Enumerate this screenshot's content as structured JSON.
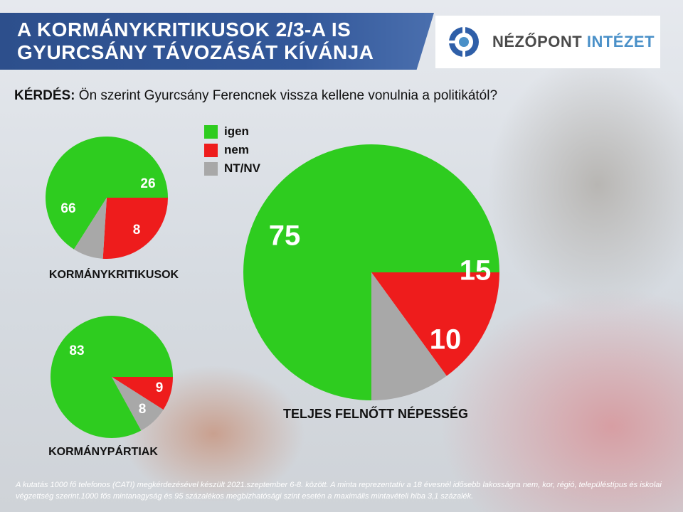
{
  "header": {
    "title_line1": "A KORMÁNYKRITIKUSOK 2/3-A IS",
    "title_line2": "GYURCSÁNY TÁVOZÁSÁT KÍVÁNJA",
    "logo_part1": "NÉZŐPONT",
    "logo_part2": "INTÉZET",
    "logo_icon": "target-circle-icon"
  },
  "question": {
    "label": "KÉRDÉS:",
    "text": "Ön szerint Gyurcsány Ferencnek vissza kellene vonulnia a politikától?"
  },
  "legend": [
    {
      "label": "igen",
      "color": "#2ecc1f"
    },
    {
      "label": "nem",
      "color": "#ee1c1c"
    },
    {
      "label": "NT/NV",
      "color": "#a8a8a8"
    }
  ],
  "chart_data": [
    {
      "type": "pie",
      "title": "KORMÁNYKRITIKUSOK",
      "categories": [
        "igen",
        "nem",
        "NT/NV"
      ],
      "values": [
        66,
        26,
        8
      ],
      "labels": [
        "66",
        "26",
        "8"
      ]
    },
    {
      "type": "pie",
      "title": "KORMÁNYPÁRTIAK",
      "categories": [
        "igen",
        "nem",
        "NT/NV"
      ],
      "values": [
        83,
        9,
        8
      ],
      "labels": [
        "83",
        "9",
        "8"
      ]
    },
    {
      "type": "pie",
      "title": "TELJES FELNŐTT NÉPESSÉG",
      "categories": [
        "igen",
        "nem",
        "NT/NV"
      ],
      "values": [
        75,
        15,
        10
      ],
      "labels": [
        "75",
        "15",
        "10"
      ]
    }
  ],
  "footnote": "A kutatás 1000 fő telefonos (CATI) megkérdezésével készült 2021.szeptember 6-8. között. A minta reprezentatív a 18 évesnél idősebb lakosságra nem, kor, régió, településtípus és iskolai végzettség szerint.1000 fős mintanagyság és 95 százalékos megbízhatósági szint esetén a maximális mintavételi hiba 3,1 százalék."
}
